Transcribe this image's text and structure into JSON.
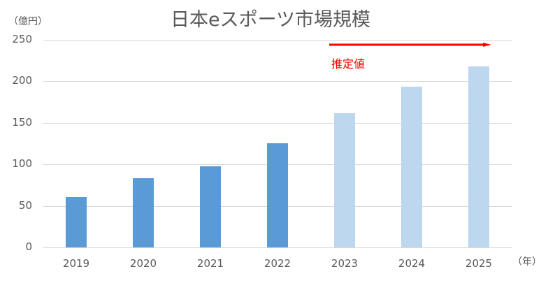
{
  "chart_data": {
    "type": "bar",
    "title": "日本eスポーツ市場規模",
    "xlabel": "（年）",
    "ylabel": "（億円）",
    "ylim": [
      0,
      250
    ],
    "yticks": [
      0,
      50,
      100,
      150,
      200,
      250
    ],
    "grid": true,
    "legend": null,
    "categories": [
      "2019",
      "2020",
      "2021",
      "2022",
      "2023",
      "2024",
      "2025"
    ],
    "values": [
      61,
      83,
      98,
      125,
      162,
      194,
      218
    ],
    "estimated": [
      false,
      false,
      false,
      false,
      true,
      true,
      true
    ],
    "colors": {
      "actual": "#5b9bd5",
      "estimated": "#bdd7ee",
      "annotation": "#ff0000",
      "grid": "#d9d9d9",
      "text": "#595959"
    },
    "annotations": [
      {
        "text": "推定値",
        "type": "arrow",
        "from_category": "2023",
        "to_category": "2025"
      }
    ]
  },
  "labels": {
    "title": "日本eスポーツ市場規模",
    "y_unit": "（億円）",
    "x_unit": "（年）",
    "annotation": "推定値",
    "yticks": [
      "0",
      "50",
      "100",
      "150",
      "200",
      "250"
    ],
    "xticks": [
      "2019",
      "2020",
      "2021",
      "2022",
      "2023",
      "2024",
      "2025"
    ]
  }
}
